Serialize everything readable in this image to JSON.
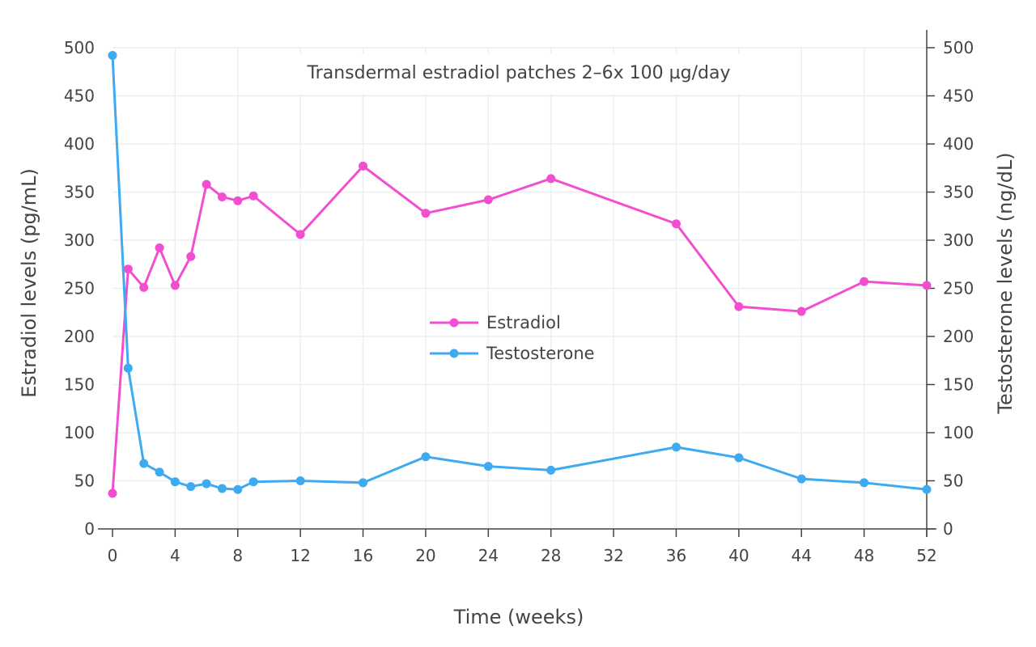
{
  "chart_data": {
    "type": "line",
    "title": "Transdermal estradiol patches 2–6x 100 µg/day",
    "xlabel": "Time (weeks)",
    "ylabel": "Estradiol levels (pg/mL)",
    "y2label": "Testosterone levels (ng/dL)",
    "xlim": [
      0,
      52
    ],
    "ylim": [
      0,
      500
    ],
    "y2lim": [
      0,
      500
    ],
    "x_ticks": [
      0,
      4,
      8,
      12,
      16,
      20,
      24,
      28,
      32,
      36,
      40,
      44,
      48,
      52
    ],
    "y_ticks": [
      0,
      50,
      100,
      150,
      200,
      250,
      300,
      350,
      400,
      450,
      500
    ],
    "grid": true,
    "legend_position": "center",
    "series": [
      {
        "name": "Estradiol",
        "axis": "left",
        "color": "#f24fd0",
        "x": [
          0,
          1,
          2,
          3,
          4,
          5,
          6,
          7,
          8,
          9,
          12,
          16,
          20,
          24,
          28,
          36,
          40,
          44,
          48,
          52
        ],
        "values": [
          37,
          270,
          251,
          292,
          253,
          283,
          358,
          345,
          341,
          346,
          306,
          377,
          328,
          342,
          364,
          317,
          231,
          226,
          257,
          253
        ]
      },
      {
        "name": "Testosterone",
        "axis": "right",
        "color": "#3eaaf0",
        "x": [
          0,
          1,
          2,
          3,
          4,
          5,
          6,
          7,
          8,
          9,
          12,
          16,
          20,
          24,
          28,
          36,
          40,
          44,
          48,
          52
        ],
        "values": [
          492,
          167,
          68,
          59,
          49,
          44,
          47,
          42,
          41,
          49,
          50,
          48,
          75,
          65,
          61,
          85,
          74,
          52,
          48,
          41
        ]
      }
    ]
  }
}
